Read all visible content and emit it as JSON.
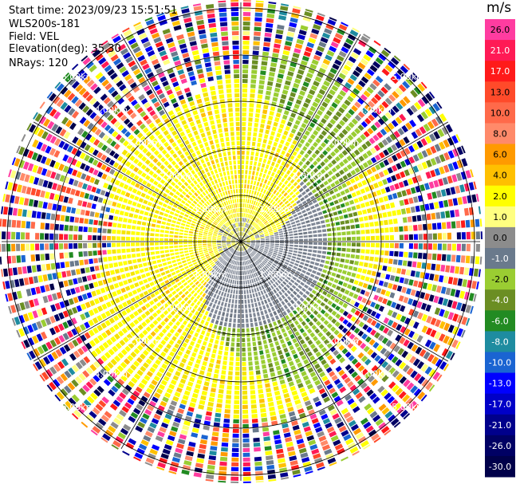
{
  "info": {
    "start_time": "Start time: 2023/09/23 15:51:51",
    "station": "WLS200s-181",
    "field": "Field: VEL",
    "elevation": "Elevation(deg): 35.30",
    "nrays": "NRays: 120"
  },
  "colorbar": {
    "unit": "m/s",
    "bins": [
      {
        "label": "26.0",
        "color": "#ff3ca0"
      },
      {
        "label": "21.0",
        "color": "#ff1a55"
      },
      {
        "label": "17.0",
        "color": "#ff1a1a"
      },
      {
        "label": "13.0",
        "color": "#ff4a2a"
      },
      {
        "label": "10.0",
        "color": "#ff6a4a"
      },
      {
        "label": "8.0",
        "color": "#ff8a6a"
      },
      {
        "label": "6.0",
        "color": "#ff9a00"
      },
      {
        "label": "4.0",
        "color": "#ffc000"
      },
      {
        "label": "2.0",
        "color": "#ffff00"
      },
      {
        "label": "1.0",
        "color": "#ffff80"
      },
      {
        "label": "0.0",
        "color": "#8c8c8c"
      },
      {
        "label": "-1.0",
        "color": "#6a7a8c"
      },
      {
        "label": "-2.0",
        "color": "#9acd32"
      },
      {
        "label": "-4.0",
        "color": "#6b8e23"
      },
      {
        "label": "-6.0",
        "color": "#228b22"
      },
      {
        "label": "-8.0",
        "color": "#1e8ca0"
      },
      {
        "label": "-10.0",
        "color": "#1a64d2"
      },
      {
        "label": "-13.0",
        "color": "#0000ff"
      },
      {
        "label": "-17.0",
        "color": "#0000c8"
      },
      {
        "label": "-21.0",
        "color": "#00008c"
      },
      {
        "label": "-26.0",
        "color": "#000064"
      },
      {
        "label": "-30.0",
        "color": "#00004a"
      }
    ]
  },
  "chart_data": {
    "type": "heatmap",
    "projection": "polar PPI",
    "nrays": 120,
    "range_rings": [
      "1.00km",
      "2.00km",
      "3.00km",
      "4.00km",
      "5.00km"
    ],
    "field": "VEL",
    "unit": "m/s",
    "pattern": "inner ~1.5km: mix of positive (yellow, north half) and near-zero/negative (gray/green, south half) radial velocities forming a spiral; beyond ~3km noisy multicolour returns"
  }
}
